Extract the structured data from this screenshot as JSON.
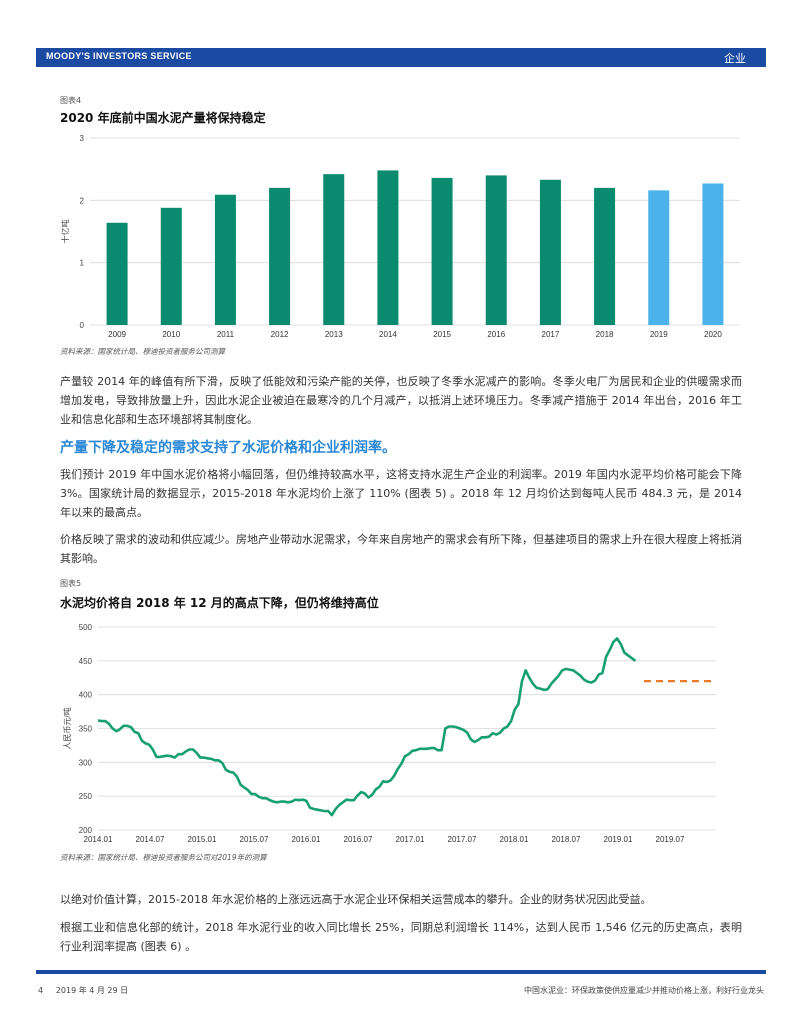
{
  "header": {
    "left": "MOODY'S INVESTORS SERVICE",
    "right": "企业"
  },
  "figure4": {
    "label": "图表4",
    "title": "2020 年底前中国水泥产量将保持稳定",
    "source": "资料来源：国家统计局、穆迪投资者服务公司测算"
  },
  "paragraph1": "产量较 2014 年的峰值有所下滑，反映了低能效和污染产能的关停，也反映了冬季水泥减产的影响。冬季火电厂为居民和企业的供暖需求而增加发电，导致排放量上升，因此水泥企业被迫在最寒冷的几个月减产，以抵消上述环境压力。冬季减产措施于 2014 年出台，2016 年工业和信息化部和生态环境部将其制度化。",
  "heading1": "产量下降及稳定的需求支持了水泥价格和企业利润率。",
  "paragraph2": "我们预计 2019 年中国水泥价格将小幅回落，但仍维持较高水平，这将支持水泥生产企业的利润率。2019 年国内水泥平均价格可能会下降 3%。国家统计局的数据显示，2015-2018 年水泥均价上涨了 110% (图表 5) 。2018 年 12 月均价达到每吨人民币 484.3 元，是 2014 年以来的最高点。",
  "paragraph3": "价格反映了需求的波动和供应减少。房地产业带动水泥需求，今年来自房地产的需求会有所下降，但基建项目的需求上升在很大程度上将抵消其影响。",
  "figure5": {
    "label": "图表5",
    "title": "水泥均价将自 2018 年 12 月的高点下降，但仍将维持高位",
    "source": "资料来源：国家统计局、穆迪投资者服务公司对2019年的测算"
  },
  "paragraph4": "以绝对价值计算，2015-2018 年水泥价格的上涨远远高于水泥企业环保相关运营成本的攀升。企业的财务状况因此受益。",
  "paragraph5": "根据工业和信息化部的统计，2018 年水泥行业的收入同比增长 25%，同期总利润增长 114%，达到人民币 1,546 亿元的历史高点，表明行业利润率提高 (图表 6) 。",
  "footer": {
    "page": "4",
    "date": "2019 年 4 月 29 日",
    "right": "中国水泥业：环保政策使供应量减少并推动价格上涨，利好行业龙头"
  },
  "colors": {
    "actual": "#0a8a6e",
    "forecast": "#4cb3ea",
    "line": "#16a06f",
    "forecast_line": "#e87a2a",
    "brand": "#1a4aa1"
  },
  "chart_data": [
    {
      "type": "bar",
      "categories": [
        "2009",
        "2010",
        "2011",
        "2012",
        "2013",
        "2014",
        "2015",
        "2016",
        "2017",
        "2018",
        "2019",
        "2020"
      ],
      "values": [
        1.64,
        1.88,
        2.09,
        2.2,
        2.42,
        2.48,
        2.36,
        2.4,
        2.33,
        2.2,
        2.16,
        2.27
      ],
      "forecast_from": "2019",
      "ylabel": "十亿吨",
      "ylim": [
        0,
        3
      ],
      "yticks": [
        "0",
        "1",
        "2",
        "3"
      ]
    },
    {
      "type": "line",
      "ylabel": "人民币元/吨",
      "ylim": [
        200,
        500
      ],
      "yticks": [
        "200",
        "250",
        "300",
        "350",
        "400",
        "450",
        "500"
      ],
      "xticks": [
        "2014.01",
        "2014.07",
        "2015.01",
        "2015.07",
        "2016.01",
        "2016.07",
        "2017.01",
        "2017.07",
        "2018.01",
        "2018.07",
        "2019.01",
        "2019.07"
      ],
      "series": [
        {
          "values": [
            362,
            361,
            361,
            357,
            350,
            346,
            349,
            354,
            354,
            352,
            345,
            343,
            332,
            328,
            326,
            319,
            308,
            308,
            309,
            310,
            309,
            307,
            312,
            312,
            316,
            319,
            319,
            314,
            307,
            307,
            306,
            305,
            303,
            303,
            299,
            289,
            286,
            285,
            279,
            267,
            263,
            259,
            253,
            253,
            249,
            247,
            247,
            244,
            242,
            241,
            242,
            242,
            241,
            242,
            245,
            244,
            245,
            243,
            233,
            231,
            230,
            229,
            228,
            228,
            222,
            231,
            237,
            241,
            245,
            244,
            244,
            251,
            256,
            254,
            248,
            252,
            260,
            264,
            272,
            271,
            273,
            280,
            290,
            298,
            309,
            312,
            317,
            318,
            320,
            320,
            320,
            321,
            321,
            318,
            318,
            350,
            353,
            353,
            352,
            350,
            348,
            344,
            334,
            330,
            333,
            337,
            337,
            338,
            343,
            341,
            344,
            350,
            353,
            361,
            378,
            386,
            420,
            436,
            425,
            416,
            410,
            409,
            407,
            408,
            416,
            422,
            428,
            436,
            438,
            437,
            436,
            432,
            428,
            422,
            419,
            418,
            421,
            430,
            432,
            456,
            466,
            478,
            483,
            475,
            462,
            458,
            454,
            450
          ]
        },
        {
          "name": "forecast",
          "dashed": true,
          "values": [
            420,
            420,
            420,
            420,
            420,
            420,
            420,
            420,
            420,
            420,
            420,
            420
          ]
        }
      ]
    }
  ]
}
